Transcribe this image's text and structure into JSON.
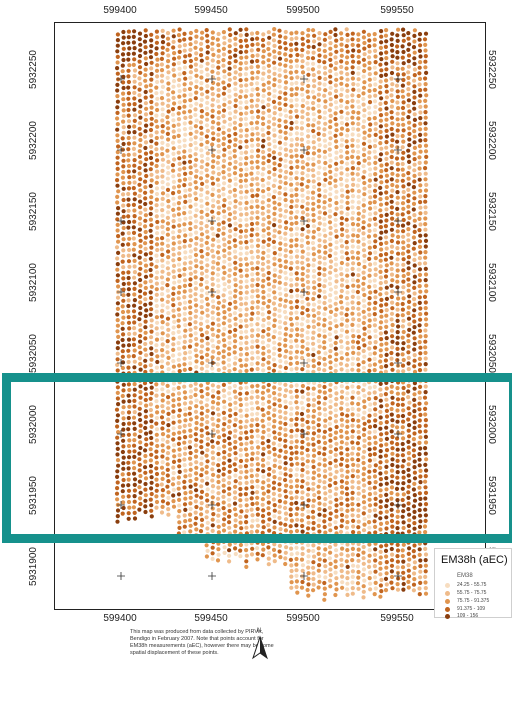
{
  "map": {
    "x_ticks": [
      "599400",
      "599450",
      "599500",
      "599550"
    ],
    "y_ticks": [
      "5932250",
      "5932200",
      "5932150",
      "5932100",
      "5932050",
      "5932000",
      "5931950",
      "5931900"
    ]
  },
  "legend": {
    "title": "EM38h (aEC)",
    "subtitle": "EM38",
    "classes": [
      {
        "label": "24.25 - 55.75",
        "color": "#f7ddc0"
      },
      {
        "label": "55.75 - 75.75",
        "color": "#efbb8a"
      },
      {
        "label": "75.75 - 91.375",
        "color": "#e0954f"
      },
      {
        "label": "91.375 - 109",
        "color": "#c0641f"
      },
      {
        "label": "109 - 156",
        "color": "#8a3e0e"
      }
    ]
  },
  "note": "This map was produced from data collected by PIRVic, Bendigo in February 2007. Note that points account for EM38h measurements (aEC), however there may be some spatial displacement of these points.",
  "north_label": "N",
  "colors": {
    "highlight": "#16918c",
    "frame": "#222222"
  }
}
